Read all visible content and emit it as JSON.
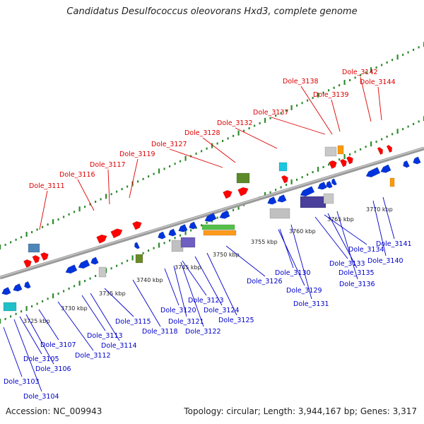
{
  "title": "Candidatus Desulfococcus oleovorans Hxd3, complete genome",
  "footer": {
    "accession": "Accession: NC_009943",
    "info": "Topology: circular; Length: 3,944,167 bp; Genes: 3,317"
  },
  "colors": {
    "forward_label": "#dd0000",
    "reverse_label": "#0000cc",
    "forward_gene": "#ff0000",
    "reverse_gene": "#0033dd",
    "backbone": "#999999",
    "tick": "#2e8b2e"
  },
  "scale_labels": [
    "3725 kbp",
    "3730 kbp",
    "3735 kbp",
    "3740 kbp",
    "3745 kbp",
    "3750 kbp",
    "3755 kbp",
    "3760 kbp",
    "3765 kbp",
    "3770 kbp"
  ],
  "forward_genes": [
    "Dole_3111",
    "Dole_3116",
    "Dole_3117",
    "Dole_3119",
    "Dole_3127",
    "Dole_3128",
    "Dole_3132",
    "Dole_3137",
    "Dole_3138",
    "Dole_3139",
    "Dole_3142",
    "Dole_3144"
  ],
  "reverse_genes": [
    "Dole_3103",
    "Dole_3104",
    "Dole_3105",
    "Dole_3106",
    "Dole_3107",
    "Dole_3112",
    "Dole_3113",
    "Dole_3114",
    "Dole_3115",
    "Dole_3118",
    "Dole_3120",
    "Dole_3121",
    "Dole_3122",
    "Dole_3123",
    "Dole_3124",
    "Dole_3125",
    "Dole_3126",
    "Dole_3129",
    "Dole_3130",
    "Dole_3131",
    "Dole_3133",
    "Dole_3134",
    "Dole_3135",
    "Dole_3136",
    "Dole_3140",
    "Dole_3141"
  ]
}
